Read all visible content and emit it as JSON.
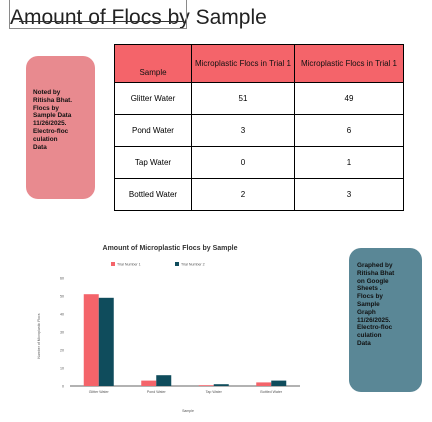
{
  "title": {
    "prefix": "Amount of Flocs",
    "suffix": " by Sample"
  },
  "notes": {
    "red": "Noted by\nRitisha Bhat.\nFlocs by\nSample Data\n11/26/2025.\nElectro-floc\nculation\nData",
    "blue": "Graphed by\nRitisha Bhat\non Google\nSheets .\nFlocs by\nSample\nGraph\n11/26/2025.\nElectro-floc\nculation\nData"
  },
  "table": {
    "headers": [
      "Sample",
      "Microplastic Flocs in Trial 1",
      "Microplastic Flocs in Trial 1"
    ],
    "rows": [
      [
        "Glitter Water",
        "51",
        "49"
      ],
      [
        "Pond Water",
        "3",
        "6"
      ],
      [
        "Tap Water",
        "0",
        "1"
      ],
      [
        "Bottled Water",
        "2",
        "3"
      ]
    ]
  },
  "colors": {
    "header_bg": "#f4646a",
    "series1": "#f4646a",
    "series2": "#0f4c5c",
    "note_red": "#e88a8f",
    "note_blue": "#5a8796"
  },
  "chart_data": {
    "type": "bar",
    "title": "Amount of Microplastic Flocs by Sample",
    "xlabel": "Sample",
    "ylabel": "Number of Microplastic Flocs",
    "categories": [
      "Glitter Water",
      "Pond Water",
      "Tap Water",
      "Bottled Water"
    ],
    "series": [
      {
        "name": "Trial Number 1",
        "values": [
          51,
          3,
          0,
          2
        ]
      },
      {
        "name": "Trial Number 2",
        "values": [
          49,
          6,
          1,
          3
        ]
      }
    ],
    "ylim": [
      0,
      60
    ],
    "yticks": [
      0,
      10,
      20,
      30,
      40,
      50,
      60
    ],
    "legend": "top",
    "grid": false
  }
}
